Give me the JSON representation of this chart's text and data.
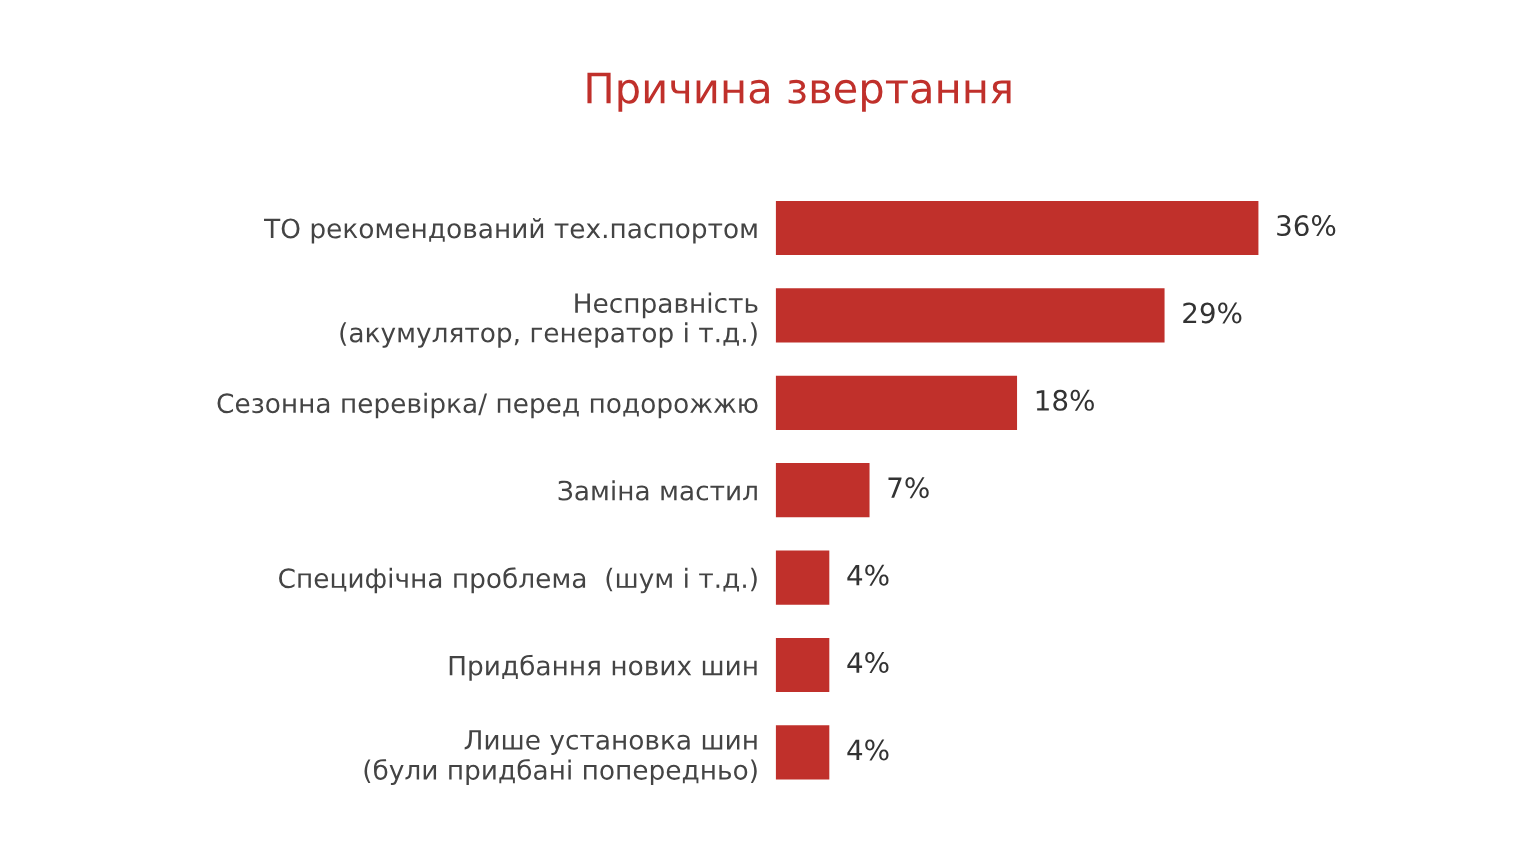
{
  "chart_data": {
    "type": "bar",
    "orientation": "horizontal",
    "title": "Причина звертання",
    "categories": [
      "ТО рекомендований тех.паспортом",
      "Несправність\n(акумулятор, генератор і т.д.)",
      "Сезонна перевірка/ перед подорожжю",
      "Заміна мастил",
      "Специфічна проблема  (шум і т.д.)",
      "Придбання нових шин",
      "Лише установка шин\n(були придбані попередньо)"
    ],
    "values": [
      36,
      29,
      18,
      7,
      4,
      4,
      4
    ],
    "value_labels": [
      "36%",
      "29%",
      "18%",
      "7%",
      "4%",
      "4%",
      "4%"
    ],
    "color": "#c0302b",
    "grid": false,
    "legend": false
  }
}
